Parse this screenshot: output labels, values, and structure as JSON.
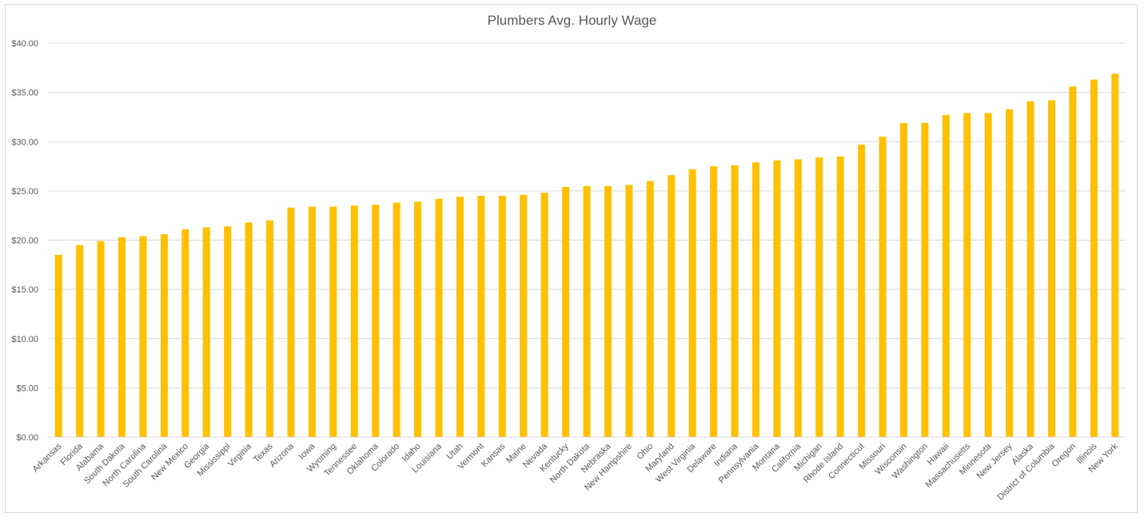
{
  "chart_data": {
    "type": "bar",
    "title": "Plumbers Avg. Hourly Wage",
    "xlabel": "",
    "ylabel": "",
    "ylim": [
      0,
      40
    ],
    "yticks": [
      "$0.00",
      "$5.00",
      "$10.00",
      "$15.00",
      "$20.00",
      "$25.00",
      "$30.00",
      "$35.00",
      "$40.00"
    ],
    "grid": true,
    "bar_color": "#FFC000",
    "categories": [
      "Arkansas",
      "Florida",
      "Alabama",
      "South Dakota",
      "North Carolina",
      "South Carolina",
      "New Mexico",
      "Georgia",
      "Mississippi",
      "Virginia",
      "Texas",
      "Arizona",
      "Iowa",
      "Wyoming",
      "Tennessee",
      "Oklahoma",
      "Colorado",
      "Idaho",
      "Louisiana",
      "Utah",
      "Vermont",
      "Kansas",
      "Maine",
      "Nevada",
      "Kentucky",
      "North Dakota",
      "Nebraska",
      "New Hampshire",
      "Ohio",
      "Maryland",
      "West Virginia",
      "Delaware",
      "Indiana",
      "Pennsylvania",
      "Montana",
      "California",
      "Michigan",
      "Rhode Island",
      "Connecticut",
      "Missouri",
      "Wisconsin",
      "Washington",
      "Hawaii",
      "Massachusetts",
      "Minnesota",
      "New Jersey",
      "Alaska",
      "District of Columbia",
      "Oregon",
      "Illinois",
      "New York"
    ],
    "values": [
      18.5,
      19.5,
      19.9,
      20.3,
      20.4,
      20.6,
      21.1,
      21.3,
      21.4,
      21.8,
      22.0,
      23.3,
      23.4,
      23.4,
      23.5,
      23.6,
      23.8,
      23.9,
      24.2,
      24.4,
      24.5,
      24.5,
      24.6,
      24.8,
      25.4,
      25.5,
      25.5,
      25.6,
      26.0,
      26.6,
      27.2,
      27.5,
      27.6,
      27.9,
      28.1,
      28.2,
      28.4,
      28.5,
      29.7,
      30.5,
      31.9,
      31.9,
      32.7,
      32.9,
      32.9,
      33.3,
      34.1,
      34.2,
      35.6,
      36.3,
      36.9
    ]
  }
}
